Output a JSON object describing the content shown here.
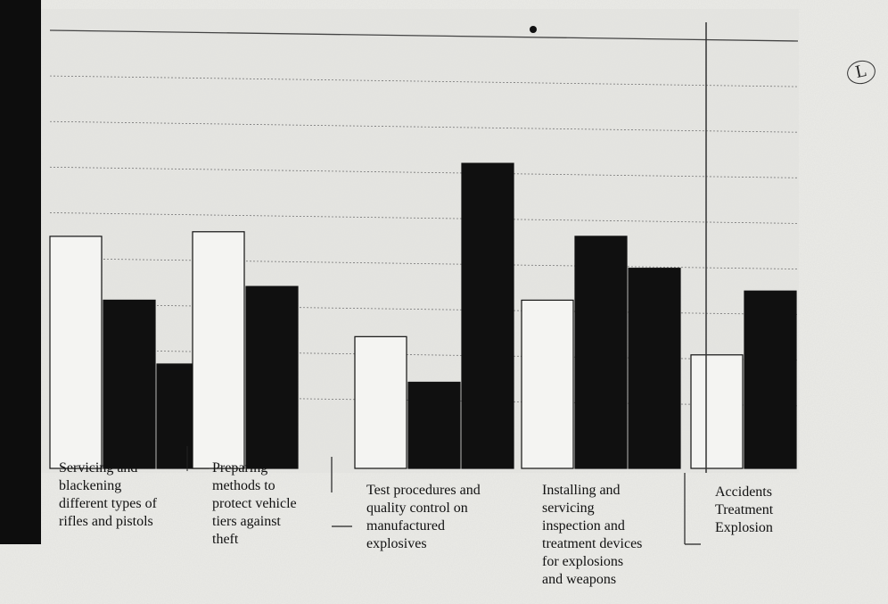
{
  "chart_data": {
    "type": "bar",
    "categories": [
      "Servicing and blackening different types of rifles and pistols",
      "Preparing methods to protect vehicle tiers against theft",
      "Test procedures and quality control on manufactured explosives",
      "Installing and servicing inspection and treatment devices for explosions and weapons",
      "Accidents Treatment Explosion"
    ],
    "category_label_lines": [
      "Servicing and\nblackening\ndifferent types of\nrifles and pistols",
      "Preparing\nmethods to\nprotect vehicle\ntiers against\ntheft",
      "Test procedures and\nquality control on\nmanufactured\nexplosives",
      "Installing and\nservicing\ninspection and\ntreatment devices\nfor explosions\nand weapons",
      "Accidents\nTreatment\nExplosion"
    ],
    "series": [
      {
        "values": [
          4.6,
          4.7,
          2.4,
          3.2,
          2.0
        ],
        "color": "#f4f4f2"
      },
      {
        "values": [
          3.2,
          3.5,
          1.4,
          4.6,
          3.4
        ],
        "color": "#101010"
      },
      {
        "values": [
          1.8,
          null,
          6.2,
          3.9,
          null
        ],
        "color": "#101010"
      }
    ],
    "ylim": [
      0,
      9
    ],
    "grid": true,
    "legend": "none",
    "annotations": {
      "circled_mark": "L"
    }
  }
}
